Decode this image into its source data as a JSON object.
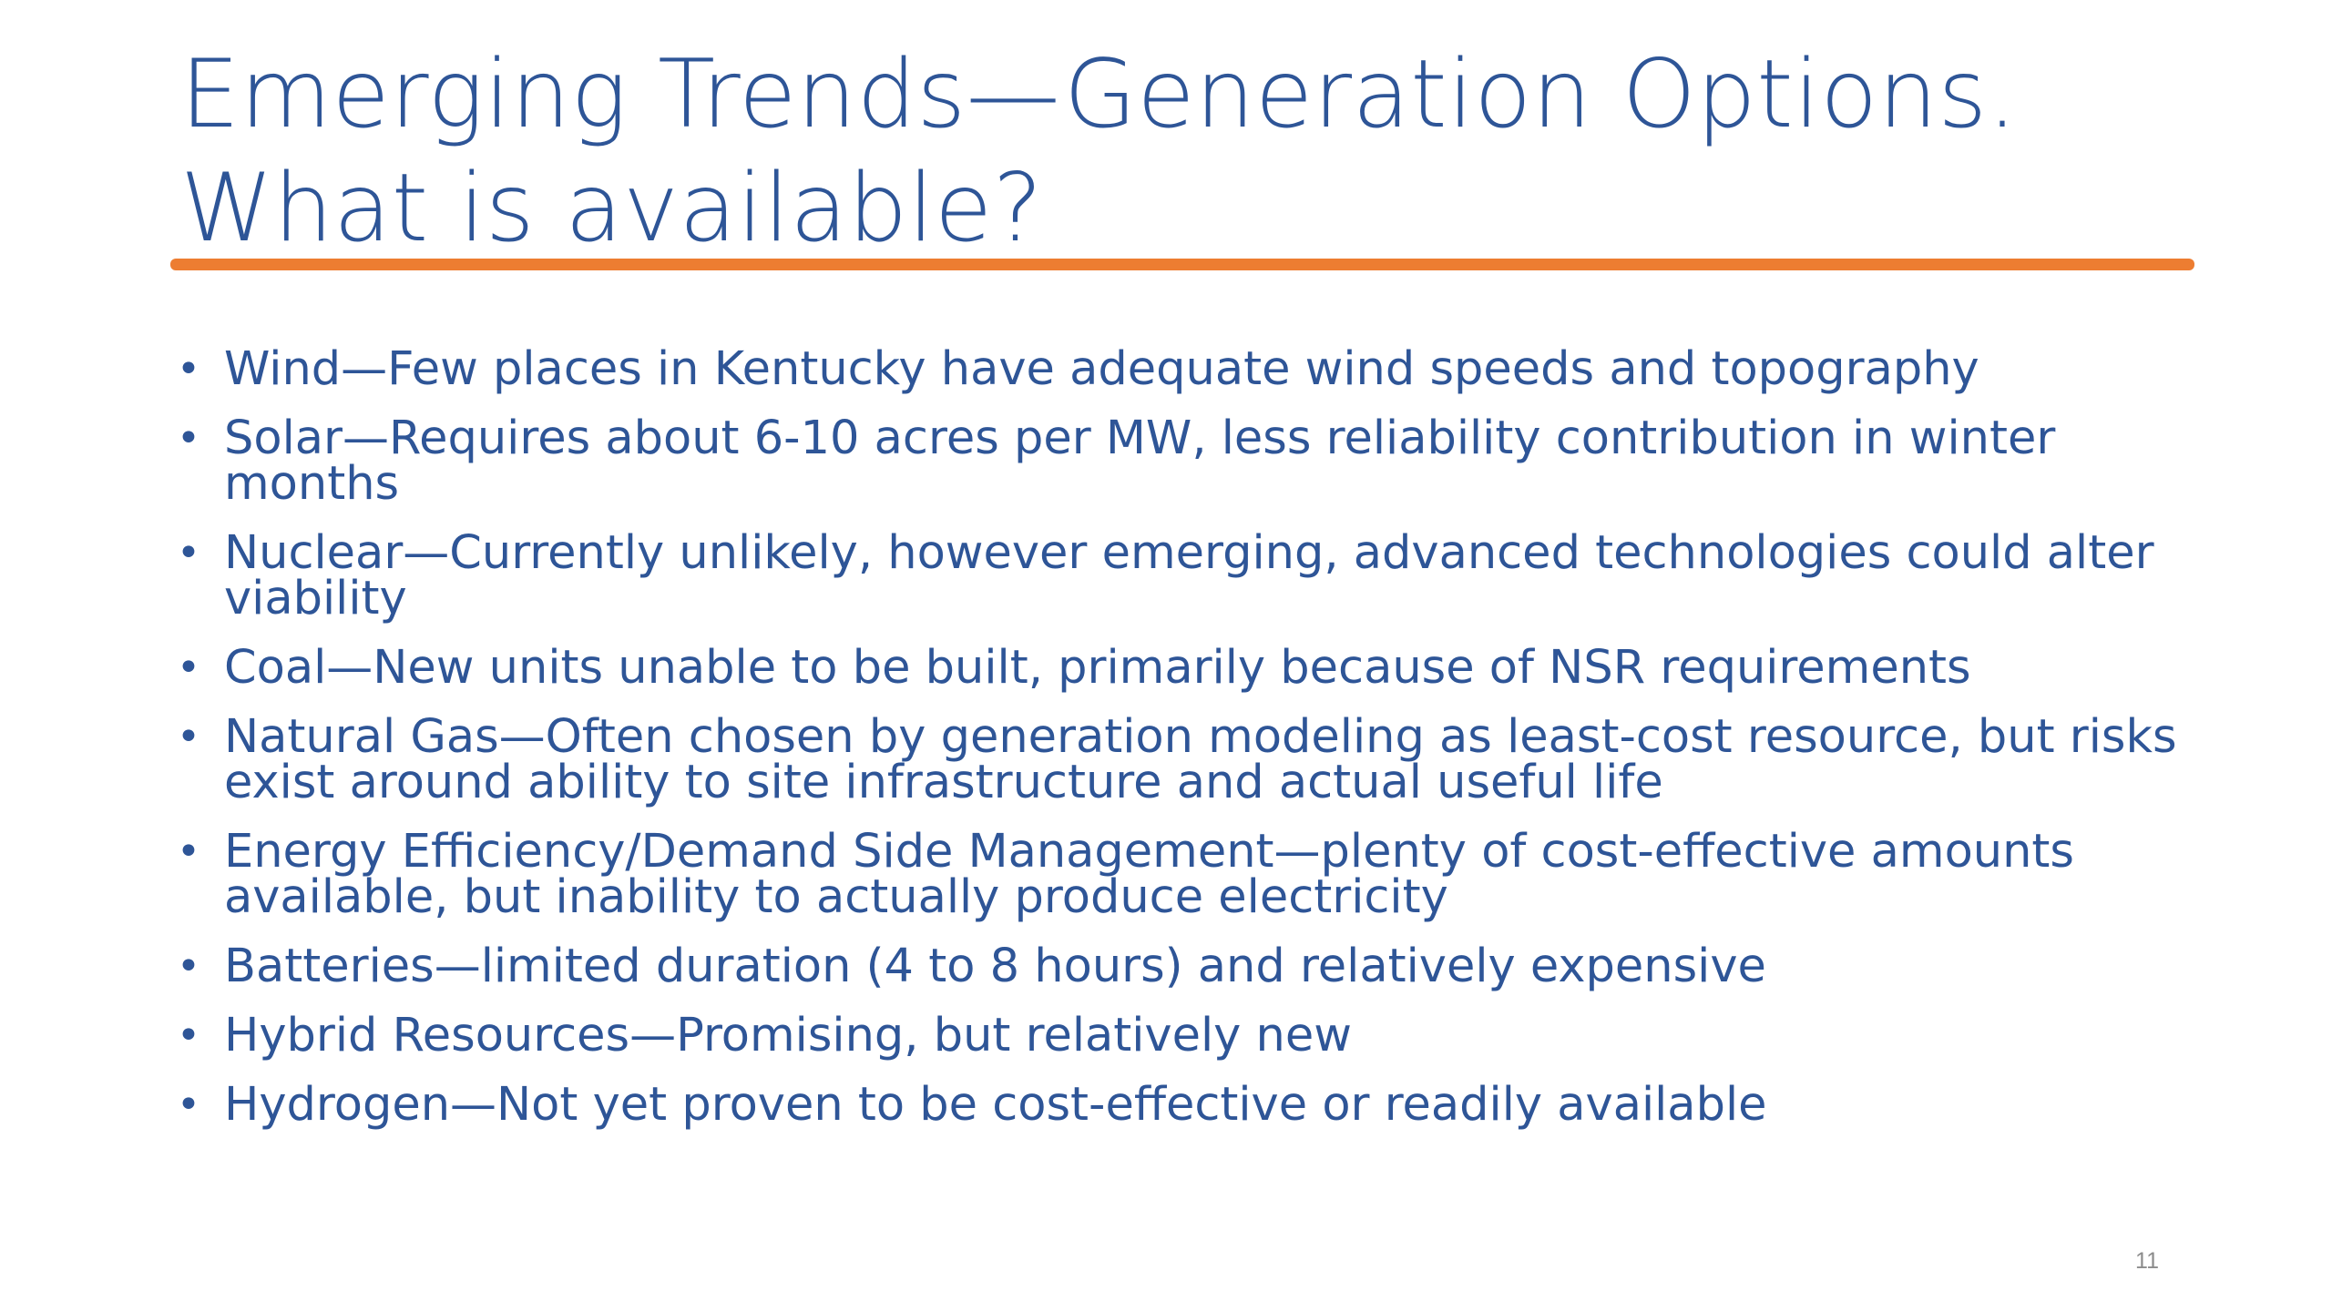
{
  "slide": {
    "title": "Emerging Trends—Generation Options. What is available?",
    "bullet_glyph": "•",
    "bullets": [
      "Wind—Few places in Kentucky have adequate wind speeds and topography",
      "Solar—Requires about 6-10 acres per MW, less reliability contribution in winter months",
      "Nuclear—Currently unlikely, however emerging, advanced technologies could alter viability",
      "Coal—New units unable to be built, primarily because of NSR requirements",
      "Natural Gas—Often chosen by generation modeling as least-cost resource, but risks exist around ability to site infrastructure and actual useful life",
      "Energy Efficiency/Demand Side Management—plenty of cost-effective amounts available, but inability to actually produce electricity",
      "Batteries—limited duration (4 to 8 hours) and relatively expensive",
      "Hybrid Resources—Promising, but relatively new",
      "Hydrogen—Not yet proven to be cost-effective or readily available"
    ],
    "page_number": "11"
  },
  "colors": {
    "title": "#2e5597",
    "body_text": "#2e5597",
    "accent_rule": "#ed7d31",
    "page_number": "#8c8c8c",
    "background": "#ffffff"
  }
}
